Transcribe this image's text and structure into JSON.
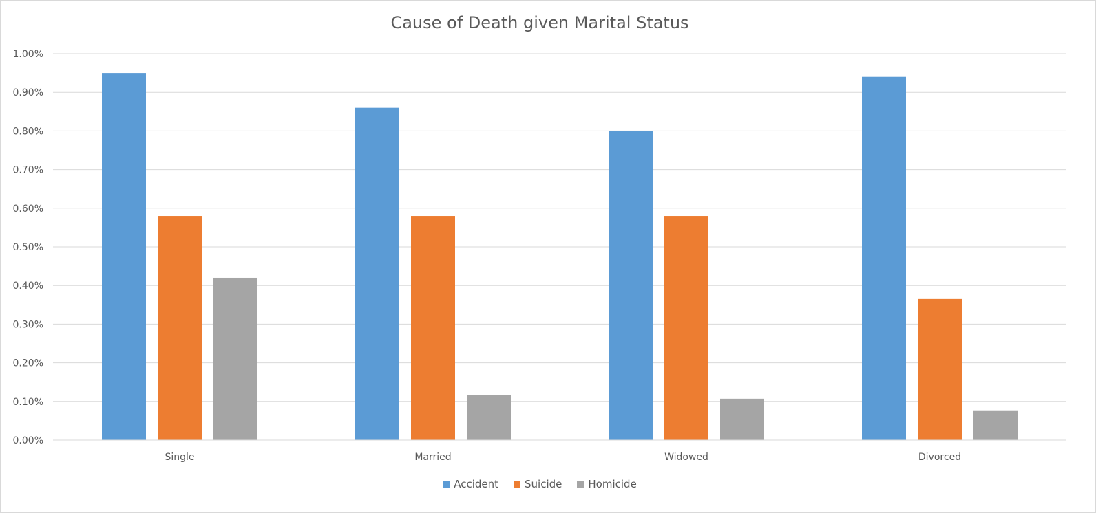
{
  "chart_data": {
    "type": "bar",
    "title": "Cause of Death given Marital Status",
    "xlabel": "",
    "ylabel": "",
    "categories": [
      "Single",
      "Married",
      "Widowed",
      "Divorced"
    ],
    "series": [
      {
        "name": "Accident",
        "color": "#5b9bd5",
        "values": [
          0.95,
          0.86,
          0.8,
          0.94
        ]
      },
      {
        "name": "Suicide",
        "color": "#ed7d31",
        "values": [
          0.58,
          0.58,
          0.58,
          0.365
        ]
      },
      {
        "name": "Homicide",
        "color": "#a5a5a5",
        "values": [
          0.42,
          0.117,
          0.107,
          0.077
        ]
      }
    ],
    "ylim": [
      0,
      1.0
    ],
    "yticks": [
      "0.00%",
      "0.10%",
      "0.20%",
      "0.30%",
      "0.40%",
      "0.50%",
      "0.60%",
      "0.70%",
      "0.80%",
      "0.90%",
      "1.00%"
    ],
    "grid": true,
    "legend_position": "bottom"
  }
}
